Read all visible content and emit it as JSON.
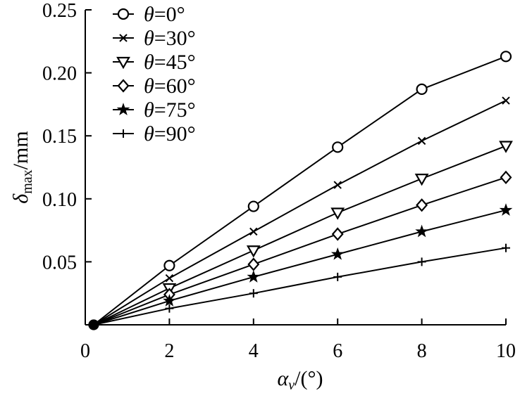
{
  "chart_data": {
    "type": "line",
    "x": [
      0.2,
      2,
      4,
      6,
      8,
      10
    ],
    "xlim": [
      0,
      10
    ],
    "ylim": [
      0,
      0.25
    ],
    "xticks": [
      0,
      2,
      4,
      6,
      8,
      10
    ],
    "xtick_labels": [
      "0",
      "2",
      "4",
      "6",
      "8",
      "10"
    ],
    "yticks": [
      0.05,
      0.1,
      0.15,
      0.2,
      0.25
    ],
    "ytick_labels": [
      "0.05",
      "0.10",
      "0.15",
      "0.20",
      "0.25"
    ],
    "xlabel": {
      "symbol": "α",
      "subscript": "v",
      "unit": "/(°)"
    },
    "ylabel": {
      "symbol": "δ",
      "subscript": "max",
      "unit": "/mm"
    },
    "grid": false,
    "legend_position": "top-left",
    "series": [
      {
        "name": "θ=0°",
        "marker": "circle",
        "values": [
          0.0,
          0.047,
          0.094,
          0.141,
          0.187,
          0.213
        ]
      },
      {
        "name": "θ=30°",
        "marker": "x",
        "values": [
          0.0,
          0.037,
          0.074,
          0.111,
          0.146,
          0.178
        ]
      },
      {
        "name": "θ=45°",
        "marker": "triangle-down",
        "values": [
          0.0,
          0.029,
          0.059,
          0.089,
          0.116,
          0.142
        ]
      },
      {
        "name": "θ=60°",
        "marker": "diamond",
        "values": [
          0.0,
          0.024,
          0.048,
          0.072,
          0.095,
          0.117
        ]
      },
      {
        "name": "θ=75°",
        "marker": "star",
        "values": [
          0.0,
          0.019,
          0.038,
          0.056,
          0.074,
          0.091
        ]
      },
      {
        "name": "θ=90°",
        "marker": "plus",
        "values": [
          0.0,
          0.013,
          0.025,
          0.038,
          0.05,
          0.061
        ]
      }
    ]
  }
}
